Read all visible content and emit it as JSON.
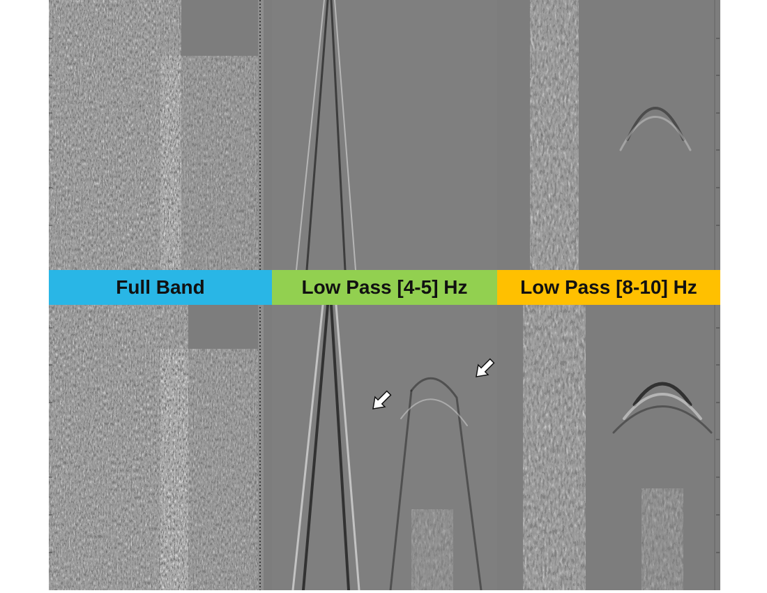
{
  "bands": [
    {
      "label": "Full Band",
      "color": "#29b6e6"
    },
    {
      "label": "Low Pass [4-5] Hz",
      "color": "#92d050"
    },
    {
      "label": "Low Pass [8-10] Hz",
      "color": "#ffc000"
    }
  ],
  "background_gray": "#7d7d7d",
  "icons": {
    "arrow": "arrow-icon"
  }
}
